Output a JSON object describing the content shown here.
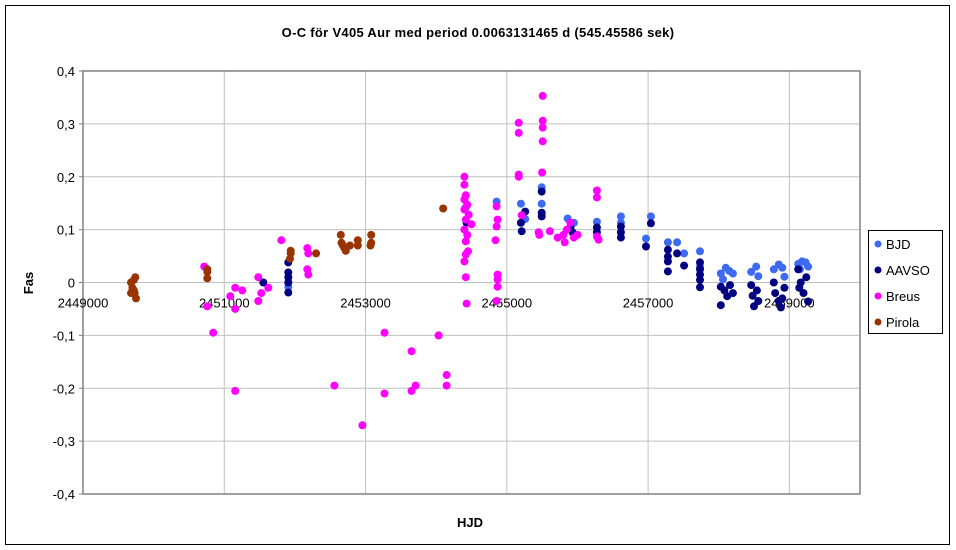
{
  "chart_data": {
    "type": "scatter",
    "title": "O-C för V405 Aur med period 0.0063131465 d (545.45586 sek)",
    "xlabel": "HJD",
    "ylabel": "Fas",
    "xlim": [
      2449000,
      2460000
    ],
    "ylim": [
      -0.4,
      0.4
    ],
    "xticks": [
      2449000,
      2451000,
      2453000,
      2455000,
      2457000,
      2459000
    ],
    "xtick_labels": [
      "2449000",
      "2451000",
      "2453000",
      "2455000",
      "2457000",
      "2459000"
    ],
    "yticks": [
      0.4,
      0.3,
      0.2,
      0.1,
      0,
      -0.1,
      -0.2,
      -0.3,
      -0.4
    ],
    "ytick_labels": [
      "0,4",
      "0,3",
      "0,2",
      "0,1",
      "0",
      "-0,1",
      "-0,2",
      "-0,3",
      "-0,4"
    ],
    "grid": true,
    "legend_position": "right",
    "series": [
      {
        "name": "BJD",
        "color": "#3D6AF0",
        "points": [
          [
            2451907,
            -0.008
          ],
          [
            2454856,
            0.153
          ],
          [
            2454420,
            0.142
          ],
          [
            2455200,
            0.149
          ],
          [
            2455260,
            0.12
          ],
          [
            2455494,
            0.18
          ],
          [
            2455494,
            0.149
          ],
          [
            2455860,
            0.121
          ],
          [
            2455950,
            0.113
          ],
          [
            2456275,
            0.115
          ],
          [
            2456615,
            0.125
          ],
          [
            2456615,
            0.113
          ],
          [
            2456970,
            0.083
          ],
          [
            2457040,
            0.125
          ],
          [
            2457280,
            0.076
          ],
          [
            2457410,
            0.076
          ],
          [
            2457510,
            0.055
          ],
          [
            2457735,
            0.059
          ],
          [
            2457735,
            0.03
          ],
          [
            2458030,
            0.017
          ],
          [
            2458100,
            0.028
          ],
          [
            2458150,
            0.022
          ],
          [
            2458200,
            0.017
          ],
          [
            2458060,
            0.006
          ],
          [
            2458460,
            0.02
          ],
          [
            2458530,
            0.03
          ],
          [
            2458560,
            0.012
          ],
          [
            2458780,
            0.025
          ],
          [
            2458850,
            0.034
          ],
          [
            2458900,
            0.028
          ],
          [
            2458930,
            0.011
          ],
          [
            2459125,
            0.035
          ],
          [
            2459180,
            0.04
          ],
          [
            2459230,
            0.038
          ],
          [
            2459265,
            0.03
          ],
          [
            2459150,
            0.025
          ]
        ]
      },
      {
        "name": "AAVSO",
        "color": "#000080",
        "points": [
          [
            2451552,
            0.0
          ],
          [
            2451907,
            0.038
          ],
          [
            2451907,
            0.019
          ],
          [
            2451907,
            0.01
          ],
          [
            2451907,
            0.0
          ],
          [
            2451907,
            -0.019
          ],
          [
            2454430,
            0.113
          ],
          [
            2455200,
            0.113
          ],
          [
            2455210,
            0.097
          ],
          [
            2455260,
            0.134
          ],
          [
            2455494,
            0.172
          ],
          [
            2455494,
            0.132
          ],
          [
            2455494,
            0.125
          ],
          [
            2455900,
            0.104
          ],
          [
            2455930,
            0.095
          ],
          [
            2456275,
            0.104
          ],
          [
            2456275,
            0.095
          ],
          [
            2456615,
            0.106
          ],
          [
            2456615,
            0.095
          ],
          [
            2456615,
            0.085
          ],
          [
            2456970,
            0.068
          ],
          [
            2457040,
            0.112
          ],
          [
            2457280,
            0.062
          ],
          [
            2457280,
            0.049
          ],
          [
            2457280,
            0.04
          ],
          [
            2457280,
            0.021
          ],
          [
            2457410,
            0.055
          ],
          [
            2457510,
            0.032
          ],
          [
            2457735,
            0.038
          ],
          [
            2457735,
            0.025
          ],
          [
            2457735,
            0.015
          ],
          [
            2457735,
            0.005
          ],
          [
            2457735,
            -0.009
          ],
          [
            2458030,
            -0.008
          ],
          [
            2458080,
            -0.015
          ],
          [
            2458120,
            -0.026
          ],
          [
            2458160,
            -0.005
          ],
          [
            2458200,
            -0.02
          ],
          [
            2458030,
            -0.043
          ],
          [
            2458460,
            -0.005
          ],
          [
            2458480,
            -0.025
          ],
          [
            2458500,
            -0.045
          ],
          [
            2458540,
            -0.015
          ],
          [
            2458560,
            -0.035
          ],
          [
            2458780,
            0.0
          ],
          [
            2458800,
            -0.02
          ],
          [
            2458850,
            -0.035
          ],
          [
            2458880,
            -0.047
          ],
          [
            2458930,
            -0.01
          ],
          [
            2458900,
            -0.03
          ],
          [
            2459125,
            0.025
          ],
          [
            2459160,
            0.0
          ],
          [
            2459200,
            -0.02
          ],
          [
            2459240,
            0.01
          ],
          [
            2459265,
            -0.036
          ],
          [
            2459140,
            -0.01
          ]
        ]
      },
      {
        "name": "Breus",
        "color": "#FF00FF",
        "points": [
          [
            2450716,
            0.03
          ],
          [
            2450758,
            -0.045
          ],
          [
            2450843,
            -0.095
          ],
          [
            2451085,
            -0.026
          ],
          [
            2451155,
            -0.01
          ],
          [
            2451255,
            -0.015
          ],
          [
            2451155,
            -0.05
          ],
          [
            2451155,
            -0.205
          ],
          [
            2451482,
            0.01
          ],
          [
            2451524,
            -0.02
          ],
          [
            2451482,
            -0.035
          ],
          [
            2451623,
            -0.01
          ],
          [
            2451808,
            0.08
          ],
          [
            2452176,
            0.065
          ],
          [
            2452190,
            0.055
          ],
          [
            2452176,
            0.025
          ],
          [
            2452190,
            0.015
          ],
          [
            2452559,
            -0.195
          ],
          [
            2452956,
            -0.27
          ],
          [
            2453268,
            -0.095
          ],
          [
            2453268,
            -0.21
          ],
          [
            2453651,
            -0.13
          ],
          [
            2453651,
            -0.205
          ],
          [
            2453708,
            -0.195
          ],
          [
            2454034,
            -0.1
          ],
          [
            2454147,
            -0.175
          ],
          [
            2454147,
            -0.195
          ],
          [
            2454400,
            0.2
          ],
          [
            2454400,
            0.185
          ],
          [
            2454420,
            0.165
          ],
          [
            2454400,
            0.157
          ],
          [
            2454440,
            0.147
          ],
          [
            2454400,
            0.138
          ],
          [
            2454460,
            0.128
          ],
          [
            2454420,
            0.119
          ],
          [
            2454500,
            0.11
          ],
          [
            2454400,
            0.1
          ],
          [
            2454440,
            0.09
          ],
          [
            2454420,
            0.078
          ],
          [
            2454450,
            0.059
          ],
          [
            2454420,
            0.053
          ],
          [
            2454400,
            0.04
          ],
          [
            2454420,
            0.01
          ],
          [
            2454430,
            -0.04
          ],
          [
            2454034,
            -0.1
          ],
          [
            2454856,
            0.144
          ],
          [
            2454870,
            0.119
          ],
          [
            2454856,
            0.106
          ],
          [
            2454840,
            0.08
          ],
          [
            2454870,
            0.015
          ],
          [
            2454870,
            0.006
          ],
          [
            2454870,
            -0.008
          ],
          [
            2454856,
            -0.035
          ],
          [
            2455168,
            0.302
          ],
          [
            2455168,
            0.283
          ],
          [
            2455168,
            0.204
          ],
          [
            2455168,
            0.2
          ],
          [
            2455210,
            0.127
          ],
          [
            2455508,
            0.353
          ],
          [
            2455508,
            0.306
          ],
          [
            2455508,
            0.293
          ],
          [
            2455508,
            0.267
          ],
          [
            2455500,
            0.208
          ],
          [
            2455450,
            0.095
          ],
          [
            2455460,
            0.09
          ],
          [
            2455610,
            0.097
          ],
          [
            2455720,
            0.085
          ],
          [
            2455800,
            0.09
          ],
          [
            2455850,
            0.1
          ],
          [
            2455900,
            0.113
          ],
          [
            2455950,
            0.085
          ],
          [
            2456000,
            0.09
          ],
          [
            2455820,
            0.076
          ],
          [
            2456275,
            0.174
          ],
          [
            2456275,
            0.161
          ],
          [
            2456275,
            0.087
          ],
          [
            2456300,
            0.081
          ]
        ]
      },
      {
        "name": "Pirola",
        "color": "#993300",
        "points": [
          [
            2449680,
            0.0
          ],
          [
            2449720,
            0.005
          ],
          [
            2449740,
            0.01
          ],
          [
            2449700,
            -0.01
          ],
          [
            2449730,
            -0.02
          ],
          [
            2449680,
            -0.02
          ],
          [
            2449750,
            -0.03
          ],
          [
            2449720,
            -0.015
          ],
          [
            2450760,
            0.025
          ],
          [
            2450760,
            0.02
          ],
          [
            2450760,
            0.008
          ],
          [
            2451940,
            0.06
          ],
          [
            2451940,
            0.055
          ],
          [
            2451930,
            0.045
          ],
          [
            2452300,
            0.055
          ],
          [
            2452650,
            0.09
          ],
          [
            2452680,
            0.07
          ],
          [
            2452700,
            0.065
          ],
          [
            2452720,
            0.06
          ],
          [
            2452660,
            0.075
          ],
          [
            2452780,
            0.07
          ],
          [
            2452890,
            0.08
          ],
          [
            2452890,
            0.07
          ],
          [
            2453080,
            0.09
          ],
          [
            2453080,
            0.075
          ],
          [
            2453070,
            0.07
          ],
          [
            2454100,
            0.14
          ]
        ]
      }
    ]
  }
}
